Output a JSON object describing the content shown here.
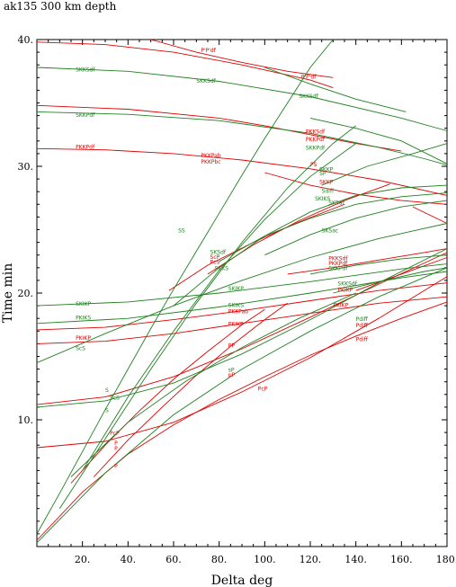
{
  "chart_data": {
    "type": "line",
    "title": "ak135   300 km depth",
    "xlabel": "Delta  deg",
    "ylabel": "Time  min",
    "xlim": [
      0,
      180
    ],
    "ylim": [
      0,
      40
    ],
    "xticks": [
      20,
      40,
      60,
      80,
      100,
      120,
      140,
      160,
      180
    ],
    "xtick_labels": [
      "20.",
      "40.",
      "60.",
      "80.",
      "100.",
      "120.",
      "140.",
      "160.",
      "180."
    ],
    "yticks": [
      10,
      20,
      30,
      40
    ],
    "ytick_labels": [
      "10.",
      "20.",
      "30.",
      "40."
    ],
    "grid": false,
    "colors": {
      "red": "#e00000",
      "green": "#208020"
    },
    "series": [
      {
        "color": "red",
        "x": [
          0,
          20,
          40,
          60,
          80,
          100,
          120,
          140,
          160,
          180
        ],
        "y": [
          0.5,
          4.3,
          7.3,
          9.6,
          11.6,
          13.4,
          15.1,
          16.6,
          18.0,
          19.3
        ]
      },
      {
        "color": "red",
        "x": [
          15,
          30,
          45,
          60,
          75,
          90,
          100
        ],
        "y": [
          5.0,
          8.0,
          10.7,
          13.2,
          15.4,
          17.5,
          18.7
        ]
      },
      {
        "color": "red",
        "x": [
          25,
          40,
          55,
          70,
          85,
          100,
          110
        ],
        "y": [
          5.5,
          8.4,
          11.0,
          13.5,
          15.8,
          17.9,
          19.2
        ]
      },
      {
        "color": "red",
        "x": [
          0,
          30,
          60,
          90,
          120,
          150,
          180
        ],
        "y": [
          7.8,
          8.3,
          9.8,
          12.2,
          14.9,
          18.0,
          21.3
        ]
      },
      {
        "color": "red",
        "x": [
          0,
          30,
          60,
          90,
          120,
          150,
          180
        ],
        "y": [
          11.2,
          11.8,
          13.4,
          15.6,
          18.1,
          20.7,
          23.2
        ]
      },
      {
        "color": "red",
        "x": [
          0,
          30,
          60,
          90,
          120,
          150,
          180
        ],
        "y": [
          16.0,
          16.2,
          16.8,
          17.6,
          18.4,
          19.2,
          19.7
        ]
      },
      {
        "color": "red",
        "x": [
          0,
          30,
          60,
          90,
          120,
          150,
          180
        ],
        "y": [
          17.1,
          17.3,
          17.9,
          18.6,
          19.4,
          20.2,
          20.8
        ]
      },
      {
        "color": "red",
        "x": [
          0,
          30,
          60,
          90,
          120,
          150,
          180
        ],
        "y": [
          31.4,
          31.3,
          31.0,
          30.5,
          29.8,
          28.9,
          27.7
        ]
      },
      {
        "color": "red",
        "x": [
          0,
          40,
          80,
          100,
          120,
          140,
          160
        ],
        "y": [
          34.8,
          34.5,
          33.8,
          33.2,
          32.5,
          31.8,
          31.2
        ]
      },
      {
        "color": "red",
        "x": [
          0,
          30,
          60,
          90,
          120,
          130
        ],
        "y": [
          39.8,
          39.6,
          39.0,
          38.0,
          36.8,
          36.2
        ]
      },
      {
        "color": "red",
        "x": [
          50,
          70,
          90,
          110,
          130
        ],
        "y": [
          40.0,
          39.0,
          38.2,
          37.5,
          37.0
        ]
      },
      {
        "color": "red",
        "x": [
          58,
          75,
          95,
          115,
          135
        ],
        "y": [
          20.2,
          22.2,
          24.0,
          25.6,
          27.0
        ]
      },
      {
        "color": "red",
        "x": [
          75,
          95,
          115,
          135,
          155
        ],
        "y": [
          21.5,
          23.8,
          25.7,
          27.3,
          28.6
        ]
      },
      {
        "color": "red",
        "x": [
          110,
          130,
          150,
          170,
          180
        ],
        "y": [
          21.5,
          22.0,
          22.6,
          23.2,
          23.5
        ]
      },
      {
        "color": "red",
        "x": [
          140,
          160,
          180
        ],
        "y": [
          20.2,
          21.5,
          22.8
        ]
      },
      {
        "color": "red",
        "x": [
          100,
          120,
          140,
          160,
          180
        ],
        "y": [
          29.5,
          28.5,
          27.8,
          27.3,
          27.0
        ]
      },
      {
        "color": "red",
        "x": [
          165,
          180
        ],
        "y": [
          26.8,
          25.5
        ]
      },
      {
        "color": "green",
        "x": [
          0,
          30,
          60,
          90,
          120,
          150,
          180
        ],
        "y": [
          0.3,
          5.8,
          10.4,
          14.0,
          17.0,
          19.7,
          22.0
        ]
      },
      {
        "color": "green",
        "x": [
          15,
          40,
          65,
          90,
          115,
          140
        ],
        "y": [
          5.5,
          9.8,
          13.0,
          15.7,
          18.0,
          20.0
        ]
      },
      {
        "color": "green",
        "x": [
          0,
          30,
          60,
          90,
          120,
          150,
          180
        ],
        "y": [
          11.0,
          11.5,
          12.9,
          15.2,
          17.9,
          20.8,
          23.5
        ]
      },
      {
        "color": "green",
        "x": [
          0,
          30,
          60,
          90,
          120,
          150,
          180
        ],
        "y": [
          14.5,
          16.8,
          19.0,
          21.0,
          22.8,
          24.3,
          25.5
        ]
      },
      {
        "color": "green",
        "x": [
          0,
          40,
          80,
          120,
          160,
          180
        ],
        "y": [
          17.6,
          18.0,
          18.9,
          20.0,
          21.2,
          21.7
        ]
      },
      {
        "color": "green",
        "x": [
          0,
          40,
          80,
          120,
          160,
          180
        ],
        "y": [
          19.0,
          19.3,
          20.0,
          20.9,
          21.9,
          22.3
        ]
      },
      {
        "color": "green",
        "x": [
          0,
          10,
          20,
          30,
          40,
          50,
          60,
          70,
          80,
          90,
          100,
          110,
          120,
          130
        ],
        "y": [
          1.0,
          4.2,
          7.5,
          10.8,
          14.0,
          17.2,
          20.3,
          23.3,
          26.3,
          29.3,
          32.2,
          35.0,
          37.8,
          40.0
        ]
      },
      {
        "color": "green",
        "x": [
          10,
          30,
          50,
          70,
          90,
          110,
          130,
          140
        ],
        "y": [
          3.0,
          8.5,
          14.0,
          19.2,
          24.0,
          28.3,
          31.8,
          33.2
        ]
      },
      {
        "color": "green",
        "x": [
          20,
          40,
          60,
          80,
          100,
          120,
          140
        ],
        "y": [
          6.0,
          11.8,
          17.0,
          21.8,
          25.8,
          29.2,
          31.8
        ]
      },
      {
        "color": "green",
        "x": [
          60,
          80,
          100,
          120,
          140,
          160,
          180
        ],
        "y": [
          19.0,
          22.0,
          24.5,
          26.4,
          27.7,
          28.3,
          28.5
        ]
      },
      {
        "color": "green",
        "x": [
          80,
          100,
          120,
          140,
          160,
          180
        ],
        "y": [
          22.5,
          24.5,
          25.9,
          27.0,
          27.6,
          27.9
        ]
      },
      {
        "color": "green",
        "x": [
          100,
          120,
          140,
          160,
          180
        ],
        "y": [
          23.0,
          24.6,
          25.9,
          26.8,
          27.3
        ]
      },
      {
        "color": "green",
        "x": [
          120,
          140,
          160,
          180
        ],
        "y": [
          21.5,
          22.2,
          22.7,
          23.0
        ]
      },
      {
        "color": "green",
        "x": [
          130,
          150,
          170,
          180
        ],
        "y": [
          20.0,
          20.9,
          21.7,
          22.0
        ]
      },
      {
        "color": "green",
        "x": [
          0,
          40,
          80,
          120,
          160,
          180
        ],
        "y": [
          37.8,
          37.5,
          36.7,
          35.5,
          33.8,
          32.8
        ]
      },
      {
        "color": "green",
        "x": [
          0,
          40,
          80,
          120,
          150,
          170,
          180
        ],
        "y": [
          34.3,
          34.1,
          33.6,
          32.6,
          31.5,
          30.6,
          30.1
        ]
      },
      {
        "color": "green",
        "x": [
          100,
          120,
          140,
          162
        ],
        "y": [
          37.8,
          36.5,
          35.3,
          34.3
        ]
      },
      {
        "color": "green",
        "x": [
          120,
          140,
          160,
          180
        ],
        "y": [
          33.8,
          33.0,
          32.0,
          30.2
        ]
      },
      {
        "color": "green",
        "x": [
          125,
          145,
          165,
          180
        ],
        "y": [
          28.5,
          30.0,
          31.0,
          31.8
        ]
      }
    ],
    "annotations": [
      {
        "text": "P'P'df",
        "x": 72,
        "y": 39.0,
        "color": "red"
      },
      {
        "text": "P'P'df",
        "x": 116,
        "y": 36.9,
        "color": "red"
      },
      {
        "text": "SKKSdf",
        "x": 17,
        "y": 37.5,
        "color": "green"
      },
      {
        "text": "SKKSdf",
        "x": 70,
        "y": 36.6,
        "color": "green"
      },
      {
        "text": "SKKSdf",
        "x": 115,
        "y": 35.4,
        "color": "green"
      },
      {
        "text": "SKKPdf",
        "x": 17,
        "y": 33.9,
        "color": "green"
      },
      {
        "text": "PKKSdf",
        "x": 118,
        "y": 32.6,
        "color": "red"
      },
      {
        "text": "PKKPdf",
        "x": 118,
        "y": 32.0,
        "color": "red"
      },
      {
        "text": "SKKPdf",
        "x": 118,
        "y": 31.3,
        "color": "green"
      },
      {
        "text": "PKKPdf",
        "x": 17,
        "y": 31.4,
        "color": "red"
      },
      {
        "text": "PKKPab",
        "x": 72,
        "y": 30.7,
        "color": "red"
      },
      {
        "text": "PKKPbc",
        "x": 72,
        "y": 30.2,
        "color": "red"
      },
      {
        "text": "PS",
        "x": 120,
        "y": 30.0,
        "color": "red"
      },
      {
        "text": "SKKP",
        "x": 124,
        "y": 29.6,
        "color": "green"
      },
      {
        "text": "SP",
        "x": 124,
        "y": 29.3,
        "color": "green"
      },
      {
        "text": "SKKP",
        "x": 124,
        "y": 28.6,
        "color": "red"
      },
      {
        "text": "Sdiff",
        "x": 125,
        "y": 27.9,
        "color": "green"
      },
      {
        "text": "SKIKS",
        "x": 122,
        "y": 27.3,
        "color": "green"
      },
      {
        "text": "SKSac",
        "x": 128,
        "y": 27.0,
        "color": "green"
      },
      {
        "text": "SS",
        "x": 62,
        "y": 24.8,
        "color": "green"
      },
      {
        "text": "SKSac",
        "x": 125,
        "y": 24.8,
        "color": "green"
      },
      {
        "text": "SKSdf",
        "x": 76,
        "y": 23.1,
        "color": "green"
      },
      {
        "text": "ScP",
        "x": 76,
        "y": 22.7,
        "color": "red"
      },
      {
        "text": "PcS",
        "x": 76,
        "y": 22.3,
        "color": "red"
      },
      {
        "text": "SKKS",
        "x": 78,
        "y": 21.8,
        "color": "green"
      },
      {
        "text": "PKKSdf",
        "x": 128,
        "y": 22.6,
        "color": "red"
      },
      {
        "text": "PKKPdf",
        "x": 128,
        "y": 22.2,
        "color": "red"
      },
      {
        "text": "SKKPdf",
        "x": 128,
        "y": 21.8,
        "color": "green"
      },
      {
        "text": "SKIKP",
        "x": 84,
        "y": 20.2,
        "color": "green"
      },
      {
        "text": "SKKSdf",
        "x": 132,
        "y": 20.6,
        "color": "green"
      },
      {
        "text": "PKIKP",
        "x": 132,
        "y": 20.1,
        "color": "red"
      },
      {
        "text": "SKIKP",
        "x": 17,
        "y": 19.0,
        "color": "green"
      },
      {
        "text": "SKIKS",
        "x": 84,
        "y": 18.9,
        "color": "green"
      },
      {
        "text": "PKKPab",
        "x": 84,
        "y": 18.4,
        "color": "red"
      },
      {
        "text": "PKIKP",
        "x": 130,
        "y": 18.9,
        "color": "red"
      },
      {
        "text": "PKIKS",
        "x": 17,
        "y": 17.9,
        "color": "green"
      },
      {
        "text": "PKIKP",
        "x": 84,
        "y": 17.4,
        "color": "red"
      },
      {
        "text": "PKIKP",
        "x": 17,
        "y": 16.3,
        "color": "red"
      },
      {
        "text": "ScS",
        "x": 17,
        "y": 15.5,
        "color": "green"
      },
      {
        "text": "PP",
        "x": 84,
        "y": 15.7,
        "color": "red"
      },
      {
        "text": "Pdiff",
        "x": 140,
        "y": 17.8,
        "color": "green"
      },
      {
        "text": "Pdiff",
        "x": 140,
        "y": 17.3,
        "color": "red"
      },
      {
        "text": "Pdiff",
        "x": 140,
        "y": 16.2,
        "color": "red"
      },
      {
        "text": "sP",
        "x": 84,
        "y": 13.8,
        "color": "green"
      },
      {
        "text": "pP",
        "x": 84,
        "y": 13.4,
        "color": "red"
      },
      {
        "text": "PcP",
        "x": 97,
        "y": 12.3,
        "color": "red"
      },
      {
        "text": "S",
        "x": 30,
        "y": 12.2,
        "color": "green"
      },
      {
        "text": "ScS",
        "x": 32,
        "y": 11.6,
        "color": "green"
      },
      {
        "text": "S",
        "x": 30,
        "y": 10.6,
        "color": "green"
      },
      {
        "text": "PcP",
        "x": 32,
        "y": 8.8,
        "color": "red"
      },
      {
        "text": "P",
        "x": 34,
        "y": 8.0,
        "color": "red"
      },
      {
        "text": "P",
        "x": 34,
        "y": 7.6,
        "color": "red"
      },
      {
        "text": "P",
        "x": 34,
        "y": 6.2,
        "color": "red"
      }
    ]
  }
}
